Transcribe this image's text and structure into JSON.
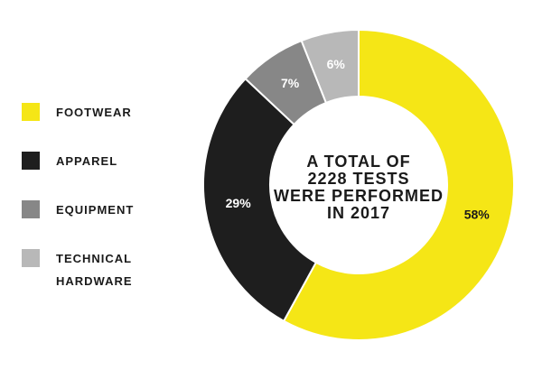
{
  "chart_data": {
    "type": "pie",
    "categories": [
      "FOOTWEAR",
      "APPAREL",
      "EQUIPMENT",
      "TECHNICAL HARDWARE"
    ],
    "values": [
      58,
      29,
      7,
      6
    ],
    "value_labels": [
      "58%",
      "29%",
      "7%",
      "6%"
    ],
    "colors": [
      "#f5e616",
      "#1e1e1e",
      "#878787",
      "#b8b8b8"
    ],
    "label_colors": [
      "#1a1a1a",
      "#ffffff",
      "#ffffff",
      "#ffffff"
    ],
    "center_text": [
      "A TOTAL OF",
      "2228 TESTS",
      "WERE PERFORMED",
      "IN 2017"
    ],
    "legend": {
      "placement": "left",
      "items": [
        {
          "lines": [
            "FOOTWEAR"
          ]
        },
        {
          "lines": [
            "APPAREL"
          ]
        },
        {
          "lines": [
            "EQUIPMENT"
          ]
        },
        {
          "lines": [
            "TECHNICAL",
            "HARDWARE"
          ]
        }
      ]
    }
  }
}
